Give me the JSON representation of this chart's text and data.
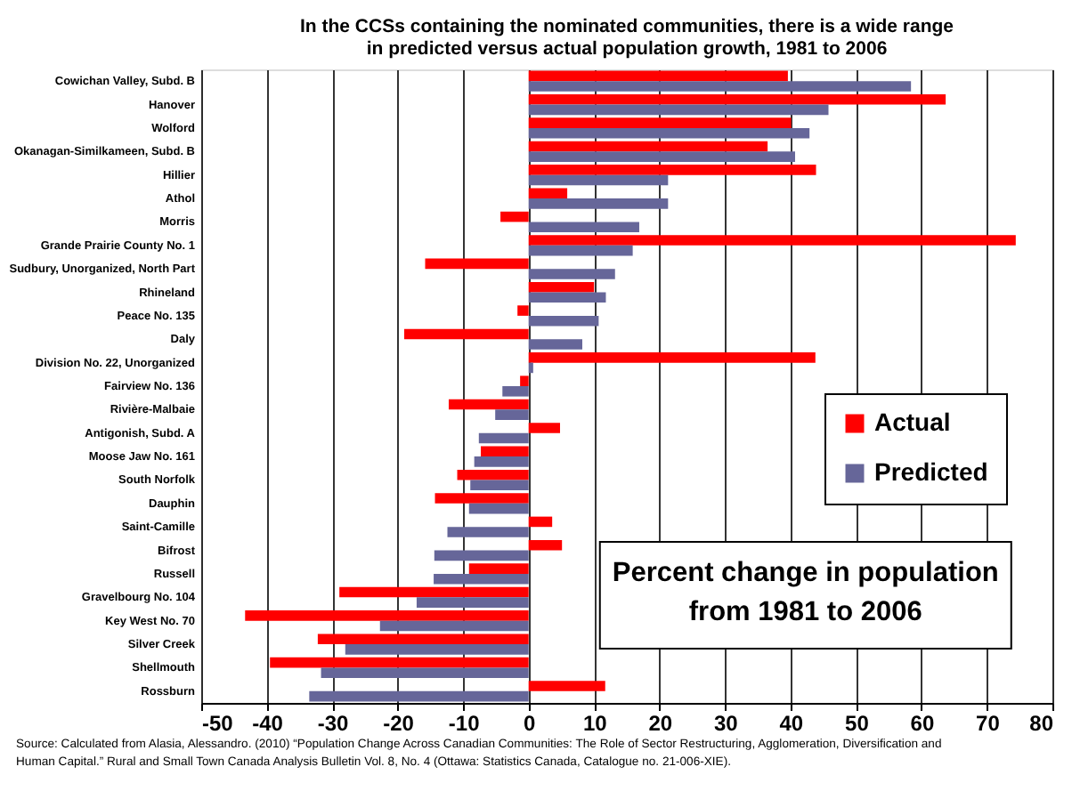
{
  "chart_data": {
    "type": "bar",
    "orientation": "horizontal",
    "title": "In the CCSs containing the nominated communities, there is a wide range in predicted versus actual population growth, 1981 to 2006",
    "categories": [
      "Cowichan Valley, Subd. B",
      "Hanover",
      "Wolford",
      "Okanagan-Similkameen, Subd. B",
      "Hillier",
      "Athol",
      "Morris",
      "Grande Prairie County No. 1",
      "Sudbury, Unorganized, North Part",
      "Rhineland",
      "Peace No. 135",
      "Daly",
      "Division No. 22, Unorganized",
      "Fairview No. 136",
      "Rivière-Malbaie",
      "Antigonish, Subd. A",
      "Moose Jaw No. 161",
      "South Norfolk",
      "Dauphin",
      "Saint-Camille",
      "Bifrost",
      "Russell",
      "Gravelbourg No. 104",
      "Key West No. 70",
      "Silver Creek",
      "Shellmouth",
      "Rossburn"
    ],
    "series": [
      {
        "name": "Actual",
        "color": "#ff0000",
        "values": [
          39.6,
          63.7,
          40.1,
          36.5,
          43.9,
          5.9,
          -4.3,
          74.4,
          -15.8,
          10.0,
          -1.7,
          -19.0,
          43.8,
          -1.3,
          -12.2,
          4.8,
          -7.3,
          -10.9,
          -14.3,
          3.6,
          5.1,
          -9.1,
          -28.9,
          -43.3,
          -32.2,
          -39.5,
          11.7
        ]
      },
      {
        "name": "Predicted",
        "color": "#666699",
        "values": [
          58.4,
          45.8,
          42.9,
          40.7,
          21.3,
          21.3,
          16.9,
          15.9,
          13.2,
          11.8,
          10.7,
          8.2,
          0.7,
          -4.0,
          -5.1,
          -7.6,
          -8.3,
          -8.9,
          -9.1,
          -12.4,
          -14.4,
          -14.5,
          -17.1,
          -22.7,
          -28.0,
          -31.7,
          -33.5
        ]
      }
    ],
    "xlim": [
      -50,
      80
    ],
    "xticks": [
      -50,
      -40,
      -30,
      -20,
      -10,
      0,
      10,
      20,
      30,
      40,
      50,
      60,
      70,
      80
    ],
    "grid": "x",
    "legend": "right",
    "annotations": [
      "Percent change in population from 1981 to 2006",
      "Source: Calculated from Alasia, Alessandro. (2010) “Population Change Across Canadian Communities: The Role of Sector Restructuring, Agglomeration, Diversification and Human Capital.” Rural and Small Town Canada Analysis Bulletin Vol. 8, No. 4 (Ottawa: Statistics Canada, Catalogue no. 21-006-XIE)."
    ]
  }
}
